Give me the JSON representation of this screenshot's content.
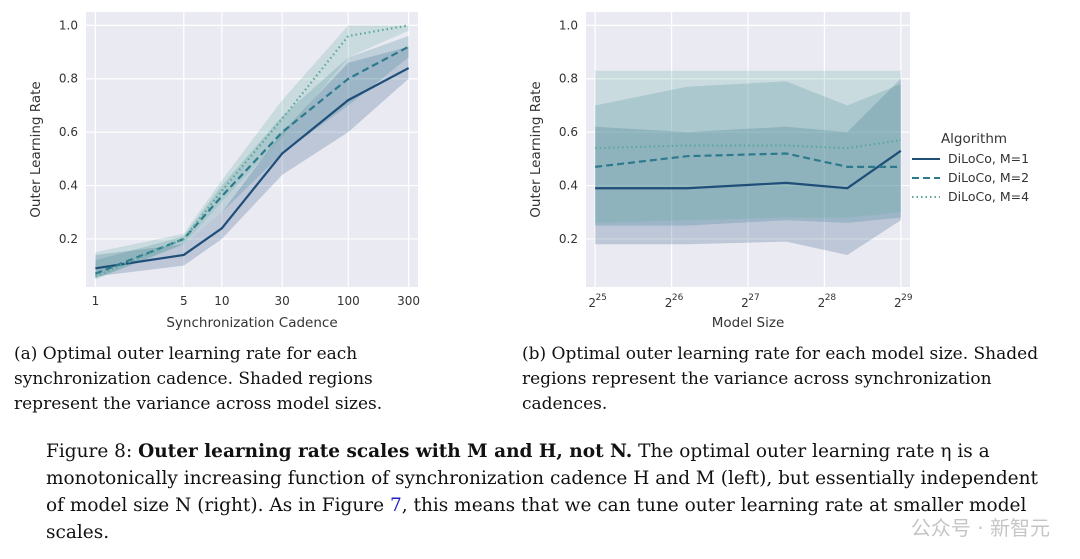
{
  "chart_data": [
    {
      "type": "line",
      "panel": "left",
      "xlabel": "Synchronization Cadence",
      "ylabel": "Outer Learning Rate",
      "x_scale": "log",
      "x": [
        1,
        5,
        10,
        30,
        100,
        300
      ],
      "x_tick_labels": [
        "1",
        "5",
        "10",
        "30",
        "100",
        "300"
      ],
      "y_ticks": [
        0.2,
        0.4,
        0.6,
        0.8,
        1.0
      ],
      "y_tick_labels": [
        "0.2",
        "0.4",
        "0.6",
        "0.8",
        "1.0"
      ],
      "ylim": [
        0.02,
        1.05
      ],
      "grid": true,
      "series": [
        {
          "name": "DiLoCo, M=1",
          "style": "solid",
          "color": "#1f4e79",
          "values": [
            0.09,
            0.14,
            0.24,
            0.52,
            0.72,
            0.84
          ],
          "band_low": [
            0.06,
            0.1,
            0.2,
            0.44,
            0.6,
            0.8
          ],
          "band_high": [
            0.14,
            0.18,
            0.3,
            0.6,
            0.86,
            0.92
          ]
        },
        {
          "name": "DiLoCo, M=2",
          "style": "dashed",
          "color": "#2c7a8c",
          "values": [
            0.07,
            0.2,
            0.36,
            0.6,
            0.8,
            0.92
          ],
          "band_low": [
            0.05,
            0.18,
            0.3,
            0.52,
            0.7,
            0.88
          ],
          "band_high": [
            0.12,
            0.21,
            0.4,
            0.66,
            0.88,
            0.96
          ]
        },
        {
          "name": "DiLoCo, M=4",
          "style": "dotted",
          "color": "#5aa89a",
          "values": [
            0.06,
            0.2,
            0.38,
            0.65,
            0.96,
            1.0
          ],
          "band_low": [
            0.05,
            0.18,
            0.34,
            0.58,
            0.88,
            0.98
          ],
          "band_high": [
            0.15,
            0.22,
            0.42,
            0.72,
            1.0,
            1.0
          ]
        }
      ]
    },
    {
      "type": "line",
      "panel": "right",
      "xlabel": "Model Size",
      "ylabel": "Outer Learning Rate",
      "x_scale": "log2",
      "x_log2": [
        25,
        26.2,
        27.5,
        28.3,
        29
      ],
      "x_tick_exponents": [
        "25",
        "26",
        "27",
        "28",
        "29"
      ],
      "x_tick_base": "2",
      "y_ticks": [
        0.2,
        0.4,
        0.6,
        0.8,
        1.0
      ],
      "y_tick_labels": [
        "0.2",
        "0.4",
        "0.6",
        "0.8",
        "1.0"
      ],
      "ylim": [
        0.02,
        1.05
      ],
      "grid": true,
      "legend_title": "Algorithm",
      "legend_position": "right",
      "series": [
        {
          "name": "DiLoCo, M=1",
          "style": "solid",
          "color": "#1f4e79",
          "values": [
            0.39,
            0.39,
            0.41,
            0.39,
            0.53
          ],
          "band_low": [
            0.18,
            0.18,
            0.19,
            0.14,
            0.27
          ],
          "band_high": [
            0.62,
            0.6,
            0.62,
            0.6,
            0.8
          ]
        },
        {
          "name": "DiLoCo, M=2",
          "style": "dashed",
          "color": "#2c7a8c",
          "values": [
            0.47,
            0.51,
            0.52,
            0.47,
            0.47
          ],
          "band_low": [
            0.25,
            0.25,
            0.27,
            0.26,
            0.28
          ],
          "band_high": [
            0.7,
            0.77,
            0.79,
            0.7,
            0.78
          ]
        },
        {
          "name": "DiLoCo, M=4",
          "style": "dotted",
          "color": "#5aa89a",
          "values": [
            0.54,
            0.55,
            0.55,
            0.54,
            0.57
          ],
          "band_low": [
            0.26,
            0.27,
            0.28,
            0.28,
            0.3
          ],
          "band_high": [
            0.83,
            0.83,
            0.83,
            0.83,
            0.83
          ]
        }
      ]
    }
  ],
  "captions": {
    "left": "(a) Optimal outer learning rate for each synchronization cadence. Shaded regions represent the variance across model sizes.",
    "right": "(b) Optimal outer learning rate for each model size. Shaded regions represent the variance across synchronization cadences."
  },
  "figure_caption": {
    "prefix": "Figure 8: ",
    "bold": "Outer learning rate scales with M and H, not N.",
    "part1": " The optimal outer learning rate η is a monotonically increasing function of synchronization cadence H and M (left), but essentially independent of model size N (right). As in Figure ",
    "ref": "7",
    "part2": ", this means that we can tune outer learning rate at smaller model scales."
  },
  "watermark": "公众号 · 新智元"
}
